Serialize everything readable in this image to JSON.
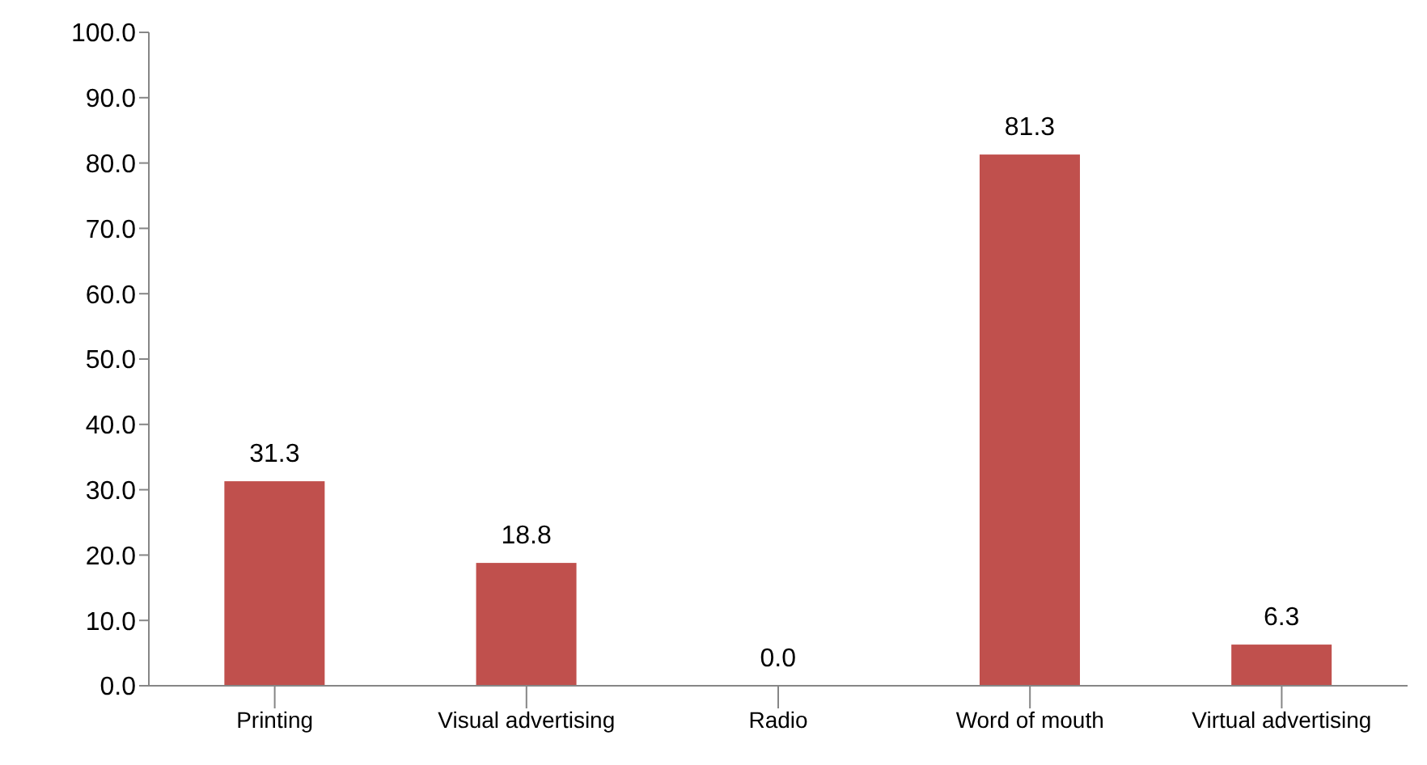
{
  "chart_data": {
    "type": "bar",
    "categories": [
      "Printing",
      "Visual advertising",
      "Radio",
      "Word of mouth",
      "Virtual advertising"
    ],
    "values": [
      31.3,
      18.8,
      0.0,
      81.3,
      6.3
    ],
    "value_labels": [
      "31.3",
      "18.8",
      "0.0",
      "81.3",
      "6.3"
    ],
    "color": "#c0504d",
    "ylim": [
      0,
      100
    ],
    "yticks": [
      {
        "value": 0,
        "label": "0.0"
      },
      {
        "value": 10,
        "label": "10.0"
      },
      {
        "value": 20,
        "label": "20.0"
      },
      {
        "value": 30,
        "label": "30.0"
      },
      {
        "value": 40,
        "label": "40.0"
      },
      {
        "value": 50,
        "label": "50.0"
      },
      {
        "value": 60,
        "label": "60.0"
      },
      {
        "value": 70,
        "label": "70.0"
      },
      {
        "value": 80,
        "label": "80.0"
      },
      {
        "value": 90,
        "label": "90.0"
      },
      {
        "value": 100,
        "label": "100.0"
      }
    ],
    "grid": false,
    "legend": false
  }
}
